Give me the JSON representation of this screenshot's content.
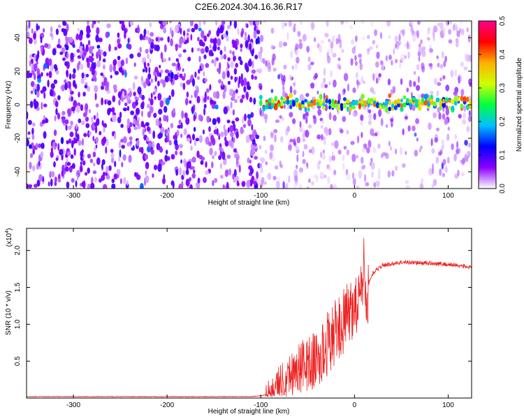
{
  "title": "C2E6.2024.304.16.36.R17",
  "chart_data": [
    {
      "type": "heatmap",
      "xlabel": "Height of straight line (km)",
      "ylabel": "Frequency (Hz)",
      "xlim": [
        -350,
        125
      ],
      "ylim": [
        -50,
        50
      ],
      "x_ticks": [
        -300,
        -200,
        -100,
        0,
        100
      ],
      "y_ticks": [
        -40,
        -20,
        0,
        20,
        40
      ],
      "grid": false,
      "colorbar": {
        "label": "Normalized spectral amplitude",
        "range": [
          0.0,
          0.5
        ],
        "ticks": [
          "0.0",
          "0.1",
          "0.2",
          "0.3",
          "0.4",
          "0.5"
        ],
        "colors": [
          "#ffffff",
          "#8a00ff",
          "#0000ff",
          "#00c0ff",
          "#00ff40",
          "#d0ff00",
          "#ffb000",
          "#ff0000",
          "#ff0090"
        ]
      },
      "features": [
        {
          "x_range": [
            -350,
            -102
          ],
          "pattern": "dense broadband noise",
          "amplitude": 0.05
        },
        {
          "x_range": [
            -102,
            125
          ],
          "pattern": "sparse broadband noise",
          "amplitude": 0.03
        },
        {
          "x_range": [
            -102,
            125
          ],
          "pattern": "narrow band centred on frequency",
          "frequency": 1,
          "amplitude_range": [
            0.12,
            0.42
          ]
        }
      ]
    },
    {
      "type": "line",
      "xlabel": "Height of straight line (km)",
      "ylabel": "SNR (10 * v/v)",
      "y_multiplier": "(x10^4)",
      "xlim": [
        -350,
        125
      ],
      "ylim": [
        0,
        2.3
      ],
      "x_ticks": [
        -300,
        -200,
        -100,
        0,
        100
      ],
      "y_ticks": [
        "0.5",
        "1.0",
        "1.5",
        "2.0"
      ],
      "grid": false,
      "series": [
        {
          "color": "#ee2020",
          "x": [
            -350,
            -300,
            -200,
            -110,
            -100,
            -95,
            -85,
            -75,
            -65,
            -55,
            -45,
            -35,
            -28,
            -22,
            -15,
            -10,
            -5,
            0,
            5,
            8,
            10,
            12,
            15,
            20,
            25,
            30,
            40,
            50,
            60,
            70,
            80,
            90,
            100,
            110,
            120,
            125
          ],
          "y": [
            0.02,
            0.02,
            0.02,
            0.02,
            0.03,
            0.05,
            0.2,
            0.35,
            0.45,
            0.55,
            0.6,
            0.7,
            0.9,
            1.0,
            1.1,
            1.2,
            1.3,
            1.4,
            1.45,
            1.5,
            2.2,
            1.4,
            1.55,
            1.7,
            1.75,
            1.8,
            1.82,
            1.84,
            1.84,
            1.83,
            1.83,
            1.82,
            1.81,
            1.8,
            1.78,
            1.76
          ],
          "band": "noisy trace; fluctuation amplitude up to about 0.5 between -95 and 15 km, about 0.02 elsewhere"
        }
      ]
    }
  ]
}
